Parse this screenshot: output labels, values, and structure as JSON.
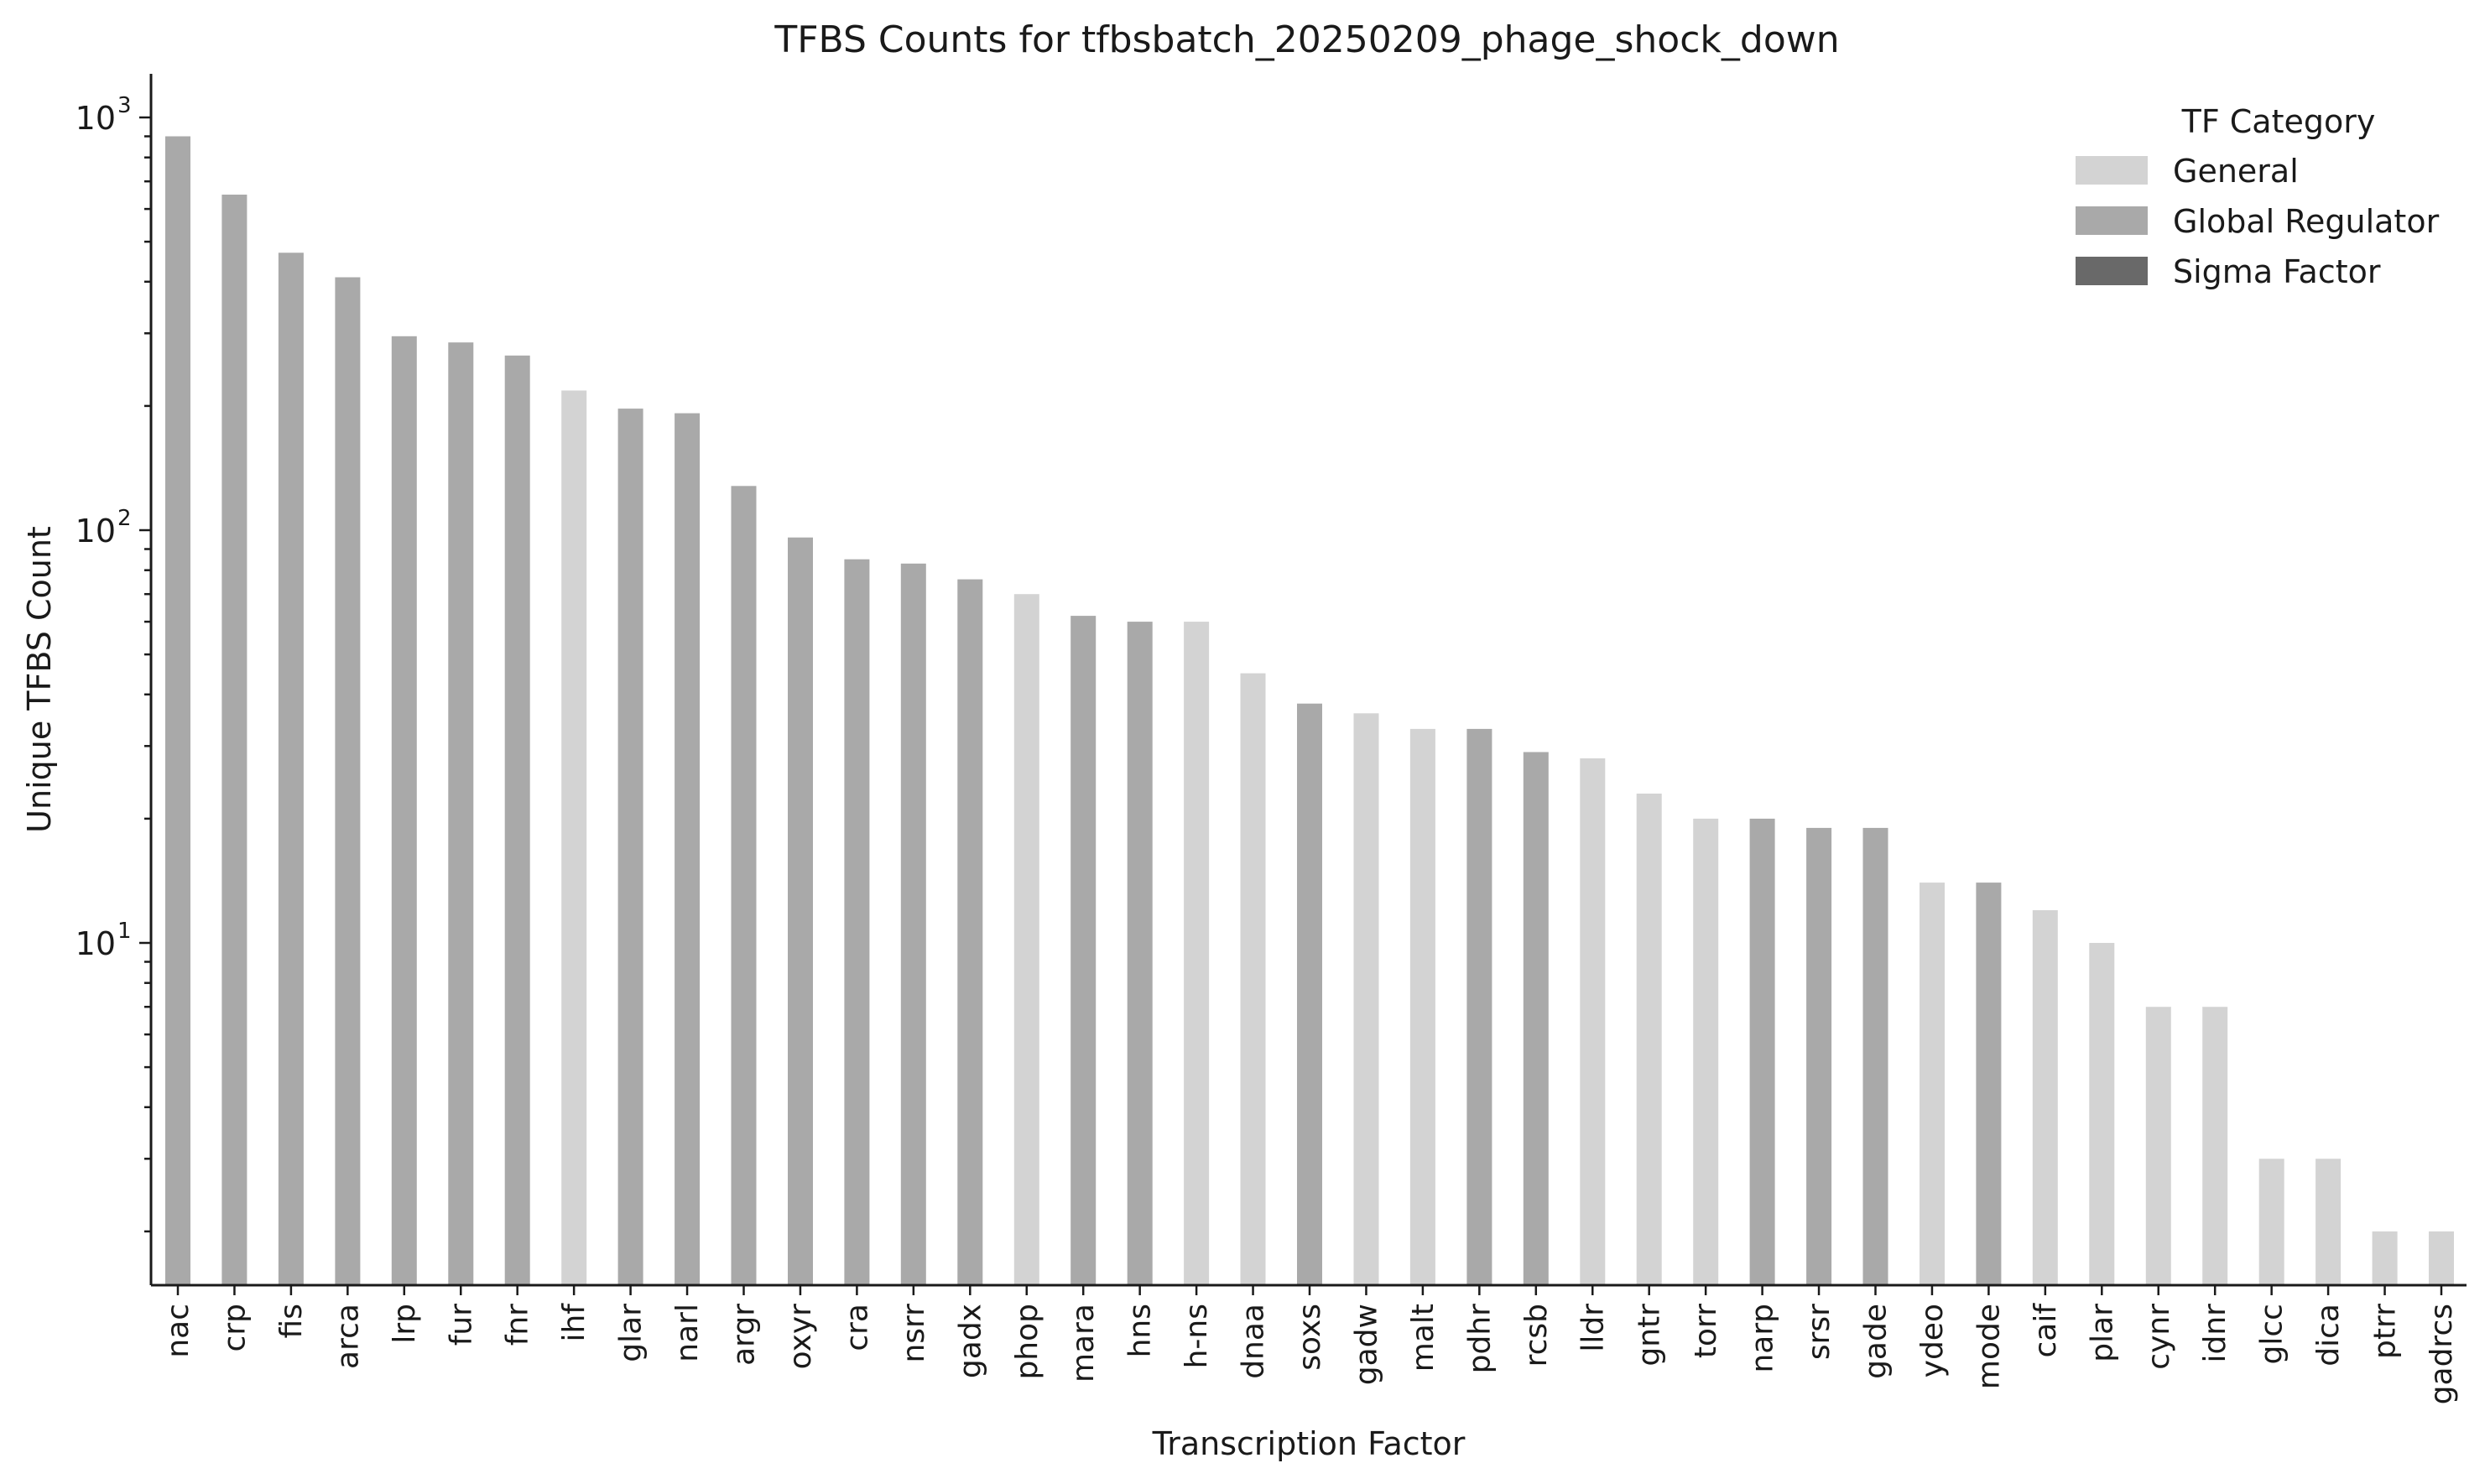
{
  "chart_data": {
    "type": "bar",
    "title": "TFBS Counts for tfbsbatch_20250209_phage_shock_down",
    "xlabel": "Transcription Factor",
    "ylabel": "Unique TFBS Count",
    "yscale": "log",
    "ylim": [
      1.7,
      1300
    ],
    "yticks": [
      {
        "value": 1000,
        "base": "10",
        "exp": "3"
      },
      {
        "value": 100,
        "base": "10",
        "exp": "2"
      },
      {
        "value": 10,
        "base": "10",
        "exp": "1"
      }
    ],
    "legend": {
      "title": "TF Category",
      "position": "top-right",
      "entries": [
        {
          "label": "General",
          "color": "#d3d3d3"
        },
        {
          "label": "Global Regulator",
          "color": "#a9a9a9"
        },
        {
          "label": "Sigma Factor",
          "color": "#696969"
        }
      ]
    },
    "categories": [
      "nac",
      "crp",
      "fis",
      "arca",
      "lrp",
      "fur",
      "fnr",
      "ihf",
      "glar",
      "narl",
      "argr",
      "oxyr",
      "cra",
      "nsrr",
      "gadx",
      "phop",
      "mara",
      "hns",
      "h-ns",
      "dnaa",
      "soxs",
      "gadw",
      "malt",
      "pdhr",
      "rcsb",
      "lldr",
      "gntr",
      "torr",
      "narp",
      "srsr",
      "gade",
      "ydeo",
      "mode",
      "caif",
      "plar",
      "cynr",
      "idnr",
      "glcc",
      "dica",
      "ptrr",
      "gadrcs"
    ],
    "values": [
      900,
      650,
      470,
      410,
      295,
      285,
      265,
      218,
      197,
      192,
      128,
      96,
      85,
      83,
      76,
      70,
      62,
      60,
      60,
      45,
      38,
      36,
      33,
      33,
      29,
      28,
      23,
      20,
      20,
      19,
      19,
      14,
      14,
      12,
      10,
      7,
      7,
      3,
      3,
      2,
      2
    ],
    "tf_category": [
      "Global Regulator",
      "Global Regulator",
      "Global Regulator",
      "Global Regulator",
      "Global Regulator",
      "Global Regulator",
      "Global Regulator",
      "General",
      "Global Regulator",
      "Global Regulator",
      "Global Regulator",
      "Global Regulator",
      "Global Regulator",
      "Global Regulator",
      "Global Regulator",
      "General",
      "Global Regulator",
      "Global Regulator",
      "General",
      "General",
      "Global Regulator",
      "General",
      "General",
      "Global Regulator",
      "Global Regulator",
      "General",
      "General",
      "General",
      "Global Regulator",
      "Global Regulator",
      "Global Regulator",
      "General",
      "Global Regulator",
      "General",
      "General",
      "General",
      "General",
      "General",
      "General",
      "General",
      "General"
    ]
  }
}
